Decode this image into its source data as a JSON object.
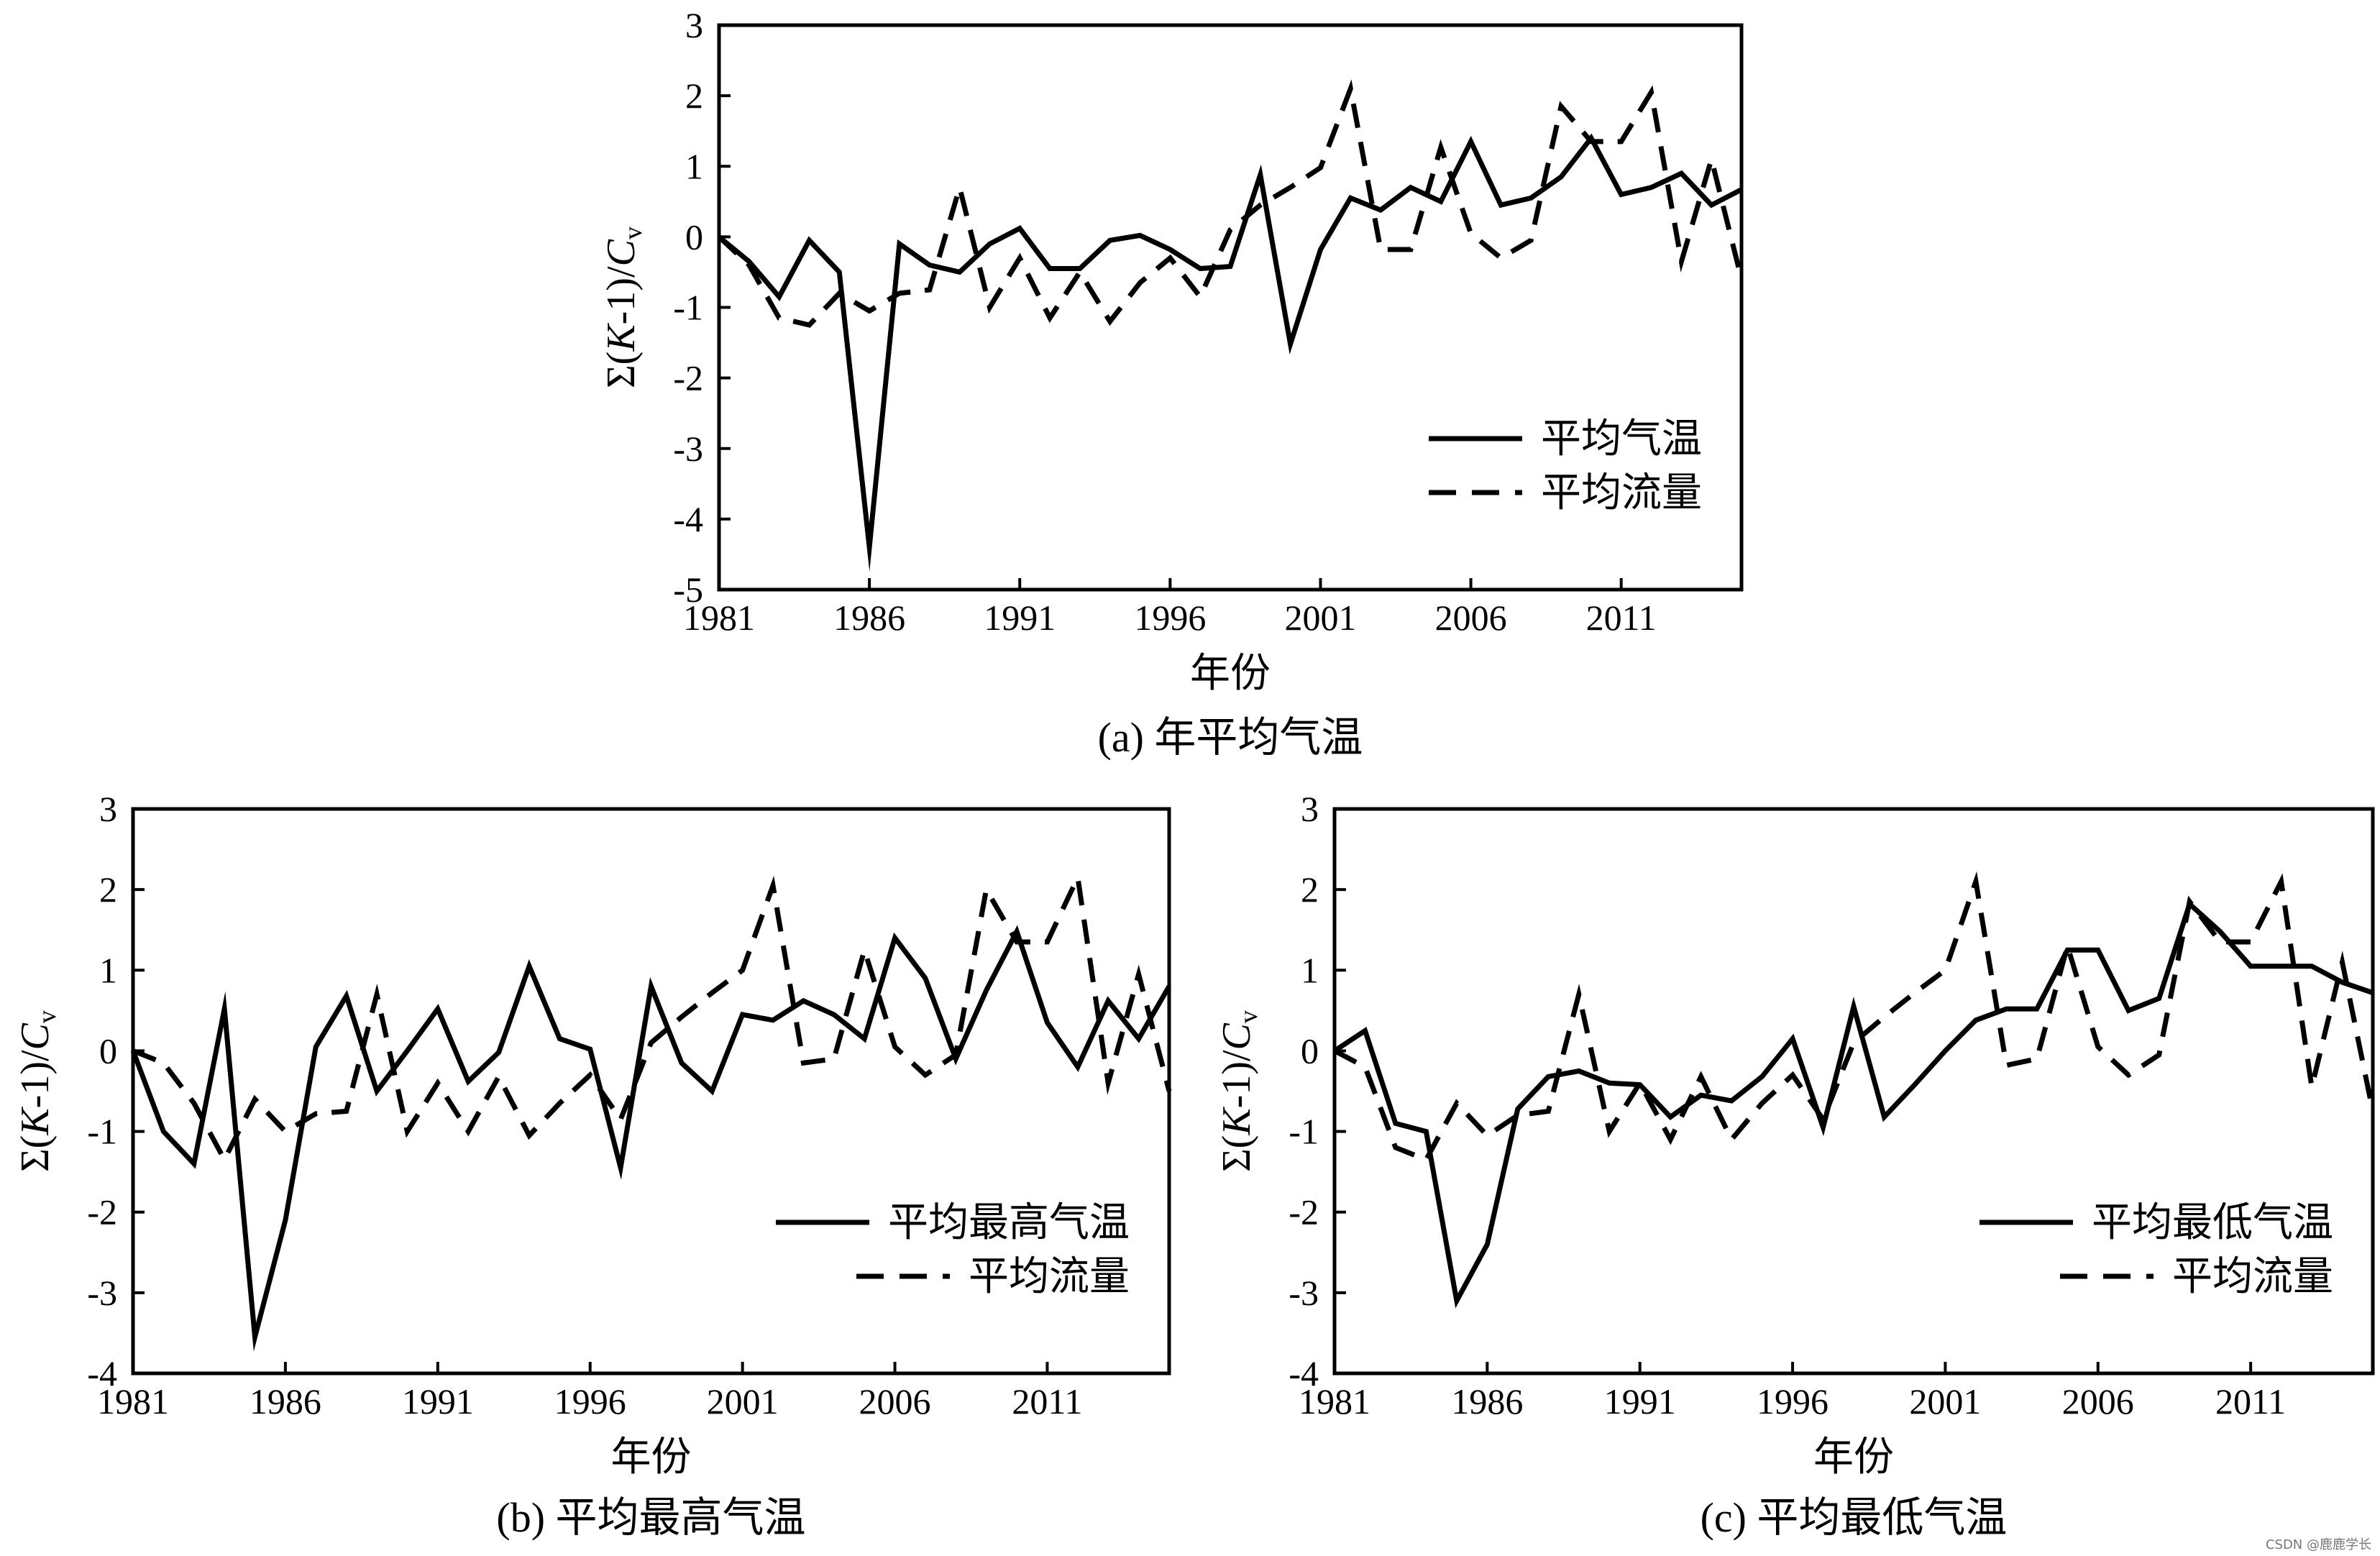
{
  "chart_data": [
    {
      "type": "line",
      "caption": "(a) 年平均气温",
      "xlabel": "年份",
      "ylabel": "Σ(K-1)/Cv",
      "xlim": [
        1981,
        2015
      ],
      "ylim": [
        -5,
        3
      ],
      "x_ticks": [
        "1981",
        "1986",
        "1991",
        "1996",
        "2001",
        "2006",
        "2011"
      ],
      "y_ticks": [
        "3",
        "2",
        "1",
        "0",
        "-1",
        "-2",
        "-3",
        "-4",
        "-5"
      ],
      "legend_position": "bottom-right",
      "x": [
        1981,
        1982,
        1983,
        1984,
        1985,
        1986,
        1987,
        1988,
        1989,
        1990,
        1991,
        1992,
        1993,
        1994,
        1995,
        1996,
        1997,
        1998,
        1999,
        2000,
        2001,
        2002,
        2003,
        2004,
        2005,
        2006,
        2007,
        2008,
        2009,
        2010,
        2011,
        2012,
        2013,
        2014,
        2015
      ],
      "series": [
        {
          "name": "平均气温",
          "style": "solid",
          "values": [
            0.0,
            -0.35,
            -0.85,
            -0.05,
            -0.5,
            -4.4,
            -0.1,
            -0.4,
            -0.5,
            -0.1,
            0.12,
            -0.45,
            -0.45,
            -0.05,
            0.02,
            -0.18,
            -0.45,
            -0.42,
            0.88,
            -1.52,
            -0.18,
            0.55,
            0.38,
            0.7,
            0.5,
            1.35,
            0.45,
            0.55,
            0.85,
            1.4,
            0.6,
            0.7,
            0.9,
            0.45,
            0.67
          ]
        },
        {
          "name": "平均流量",
          "style": "dashed",
          "values": [
            0.0,
            -0.4,
            -1.15,
            -1.25,
            -0.8,
            -1.05,
            -0.8,
            -0.75,
            0.7,
            -1.0,
            -0.3,
            -1.15,
            -0.5,
            -1.2,
            -0.65,
            -0.3,
            -0.85,
            0.1,
            0.45,
            0.7,
            0.98,
            2.1,
            -0.18,
            -0.18,
            1.27,
            0.05,
            -0.3,
            -0.05,
            1.85,
            1.35,
            1.35,
            2.05,
            -0.35,
            1.1,
            -0.6
          ]
        }
      ]
    },
    {
      "type": "line",
      "caption": "(b) 平均最高气温",
      "xlabel": "年份",
      "ylabel": "Σ(K-1)/Cv",
      "xlim": [
        1981,
        2015
      ],
      "ylim": [
        -4,
        3
      ],
      "x_ticks": [
        "1981",
        "1986",
        "1991",
        "1996",
        "2001",
        "2006",
        "2011"
      ],
      "y_ticks": [
        "3",
        "2",
        "1",
        "0",
        "-1",
        "-2",
        "-3",
        "-4"
      ],
      "legend_position": "bottom-right",
      "x": [
        1981,
        1982,
        1983,
        1984,
        1985,
        1986,
        1987,
        1988,
        1989,
        1990,
        1991,
        1992,
        1993,
        1994,
        1995,
        1996,
        1997,
        1998,
        1999,
        2000,
        2001,
        2002,
        2003,
        2004,
        2005,
        2006,
        2007,
        2008,
        2009,
        2010,
        2011,
        2012,
        2013,
        2014,
        2015
      ],
      "series": [
        {
          "name": "平均最高气温",
          "style": "solid",
          "values": [
            0.0,
            -1.0,
            -1.4,
            0.52,
            -3.55,
            -2.1,
            0.05,
            0.68,
            -0.5,
            0.0,
            0.52,
            -0.38,
            -0.02,
            1.05,
            0.15,
            0.02,
            -1.45,
            0.8,
            -0.15,
            -0.5,
            0.45,
            0.38,
            0.62,
            0.45,
            0.15,
            1.4,
            0.9,
            -0.1,
            0.75,
            1.48,
            0.35,
            -0.2,
            0.62,
            0.15,
            0.8
          ]
        },
        {
          "name": "平均流量",
          "style": "dashed",
          "values": [
            0.0,
            -0.15,
            -0.65,
            -1.35,
            -0.6,
            -1.0,
            -0.78,
            -0.75,
            0.7,
            -1.0,
            -0.4,
            -1.0,
            -0.32,
            -1.05,
            -0.65,
            -0.3,
            -0.85,
            0.1,
            0.42,
            0.72,
            1.0,
            2.05,
            -0.15,
            -0.1,
            1.25,
            0.05,
            -0.3,
            -0.05,
            2.0,
            1.35,
            1.35,
            2.15,
            -0.4,
            0.95,
            -0.5
          ]
        }
      ]
    },
    {
      "type": "line",
      "caption": "(c) 平均最低气温",
      "xlabel": "年份",
      "ylabel": "Σ(K-1)/Cv",
      "xlim": [
        1981,
        2015
      ],
      "ylim": [
        -4,
        3
      ],
      "x_ticks": [
        "1981",
        "1986",
        "1991",
        "1996",
        "2001",
        "2006",
        "2011"
      ],
      "y_ticks": [
        "3",
        "2",
        "1",
        "0",
        "-1",
        "-2",
        "-3",
        "-4"
      ],
      "legend_position": "bottom-right",
      "x": [
        1981,
        1982,
        1983,
        1984,
        1985,
        1986,
        1987,
        1988,
        1989,
        1990,
        1991,
        1992,
        1993,
        1994,
        1995,
        1996,
        1997,
        1998,
        1999,
        2000,
        2001,
        2002,
        2003,
        2004,
        2005,
        2006,
        2007,
        2008,
        2009,
        2010,
        2011,
        2012,
        2013,
        2014,
        2015
      ],
      "series": [
        {
          "name": "平均最低气温",
          "style": "solid",
          "values": [
            0.0,
            0.25,
            -0.9,
            -1.0,
            -3.1,
            -2.4,
            -0.72,
            -0.32,
            -0.25,
            -0.4,
            -0.42,
            -0.82,
            -0.55,
            -0.62,
            -0.32,
            0.15,
            -0.95,
            0.55,
            -0.82,
            -0.42,
            0.0,
            0.38,
            0.52,
            0.52,
            1.25,
            1.25,
            0.5,
            0.65,
            1.82,
            1.48,
            1.05,
            1.05,
            1.05,
            0.85,
            0.72
          ]
        },
        {
          "name": "平均流量",
          "style": "dashed",
          "values": [
            0.0,
            -0.2,
            -1.2,
            -1.35,
            -0.65,
            -1.05,
            -0.8,
            -0.75,
            0.7,
            -1.0,
            -0.4,
            -1.1,
            -0.32,
            -1.1,
            -0.65,
            -0.3,
            -0.85,
            0.1,
            0.42,
            0.72,
            1.0,
            2.1,
            -0.18,
            -0.1,
            1.3,
            0.05,
            -0.3,
            -0.05,
            1.85,
            1.35,
            1.35,
            2.1,
            -0.45,
            1.1,
            -0.75
          ]
        }
      ]
    }
  ],
  "watermark": "CSDN @鹿鹿学长"
}
